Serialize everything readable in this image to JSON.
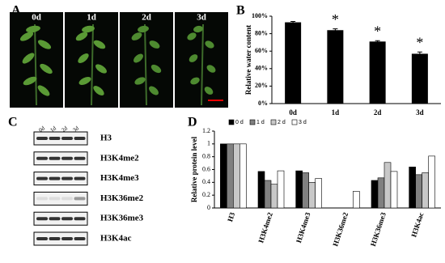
{
  "panel_labels": [
    "A",
    "B",
    "C",
    "D"
  ],
  "photo_labels": [
    "0d",
    "1d",
    "2d",
    "3d"
  ],
  "blot": {
    "lanes": [
      "0d",
      "1d",
      "2d",
      "3d"
    ],
    "proteins": [
      "H3",
      "H3K4me2",
      "H3K4me3",
      "H3K36me2",
      "H3K36me3",
      "H3K4ac"
    ]
  },
  "chart_data": [
    {
      "type": "bar",
      "ylabel": "Relative water content",
      "categories": [
        "0d",
        "1d",
        "2d",
        "3d"
      ],
      "values": [
        93,
        84,
        71,
        57
      ],
      "errors": [
        1,
        1.5,
        1,
        2
      ],
      "annotations": [
        null,
        "*",
        "*",
        "*"
      ],
      "color": "#000000",
      "ylim": [
        0,
        100
      ],
      "yticks": [
        {
          "value": 0,
          "label": "0%"
        },
        {
          "value": 20,
          "label": "20%"
        },
        {
          "value": 40,
          "label": "40%"
        },
        {
          "value": 60,
          "label": "60%"
        },
        {
          "value": 80,
          "label": "80%"
        },
        {
          "value": 100,
          "label": "100%"
        }
      ]
    },
    {
      "type": "grouped-bar",
      "ylabel": "Relative protein level",
      "categories": [
        "H3",
        "H3K4me2",
        "H3K4me3",
        "H3K36me2",
        "H3K36me3",
        "H3K4ac"
      ],
      "series": [
        {
          "name": "0 d",
          "color": "#000000",
          "values": [
            1,
            0.57,
            0.58,
            0,
            0.43,
            0.64
          ]
        },
        {
          "name": "1 d",
          "color": "#808080",
          "values": [
            1,
            0.43,
            0.55,
            0,
            0.47,
            0.52
          ]
        },
        {
          "name": "2 d",
          "color": "#c8c8c8",
          "values": [
            1,
            0.37,
            0.4,
            0,
            0.71,
            0.55
          ]
        },
        {
          "name": "3 d",
          "color": "#ffffff",
          "values": [
            1,
            0.58,
            0.46,
            0.26,
            0.57,
            0.81
          ]
        }
      ],
      "ylim": [
        0,
        1.2
      ],
      "yticks": [
        0,
        0.2,
        0.4,
        0.6,
        0.8,
        1,
        1.2
      ],
      "legend": "top"
    }
  ]
}
